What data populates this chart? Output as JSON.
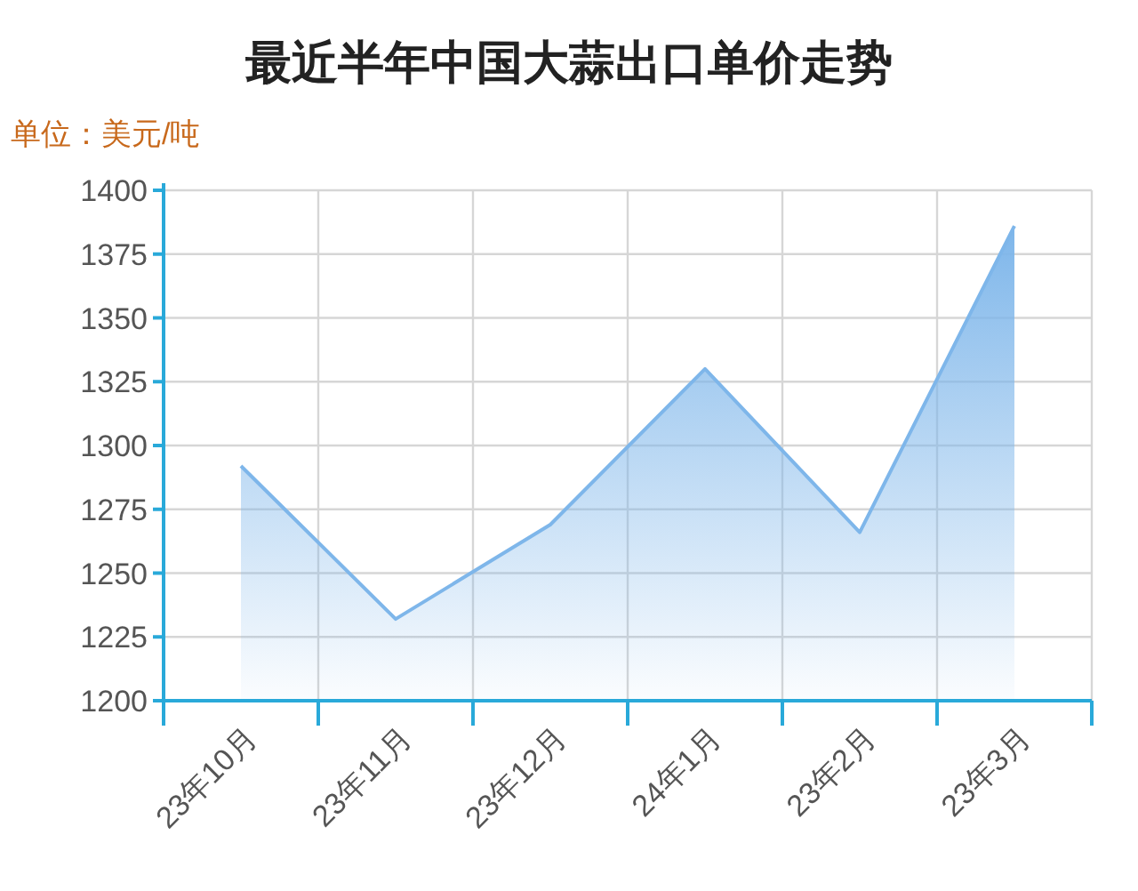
{
  "chart_data": {
    "type": "area",
    "title": "最近半年中国大蒜出口单价走势",
    "ylabel": "单位：美元/吨",
    "categories": [
      "23年10月",
      "23年11月",
      "23年12月",
      "24年1月",
      "23年2月",
      "23年3月"
    ],
    "series": [
      {
        "color": "#7eb6ea",
        "values": [
          1292,
          1232,
          1269,
          1330,
          1266,
          1386
        ]
      }
    ],
    "ylim": [
      1200,
      1400
    ],
    "yticks": [
      1200,
      1225,
      1250,
      1275,
      1300,
      1325,
      1350,
      1375,
      1400
    ],
    "grid": true,
    "marker": "none",
    "line_style": "solid"
  }
}
